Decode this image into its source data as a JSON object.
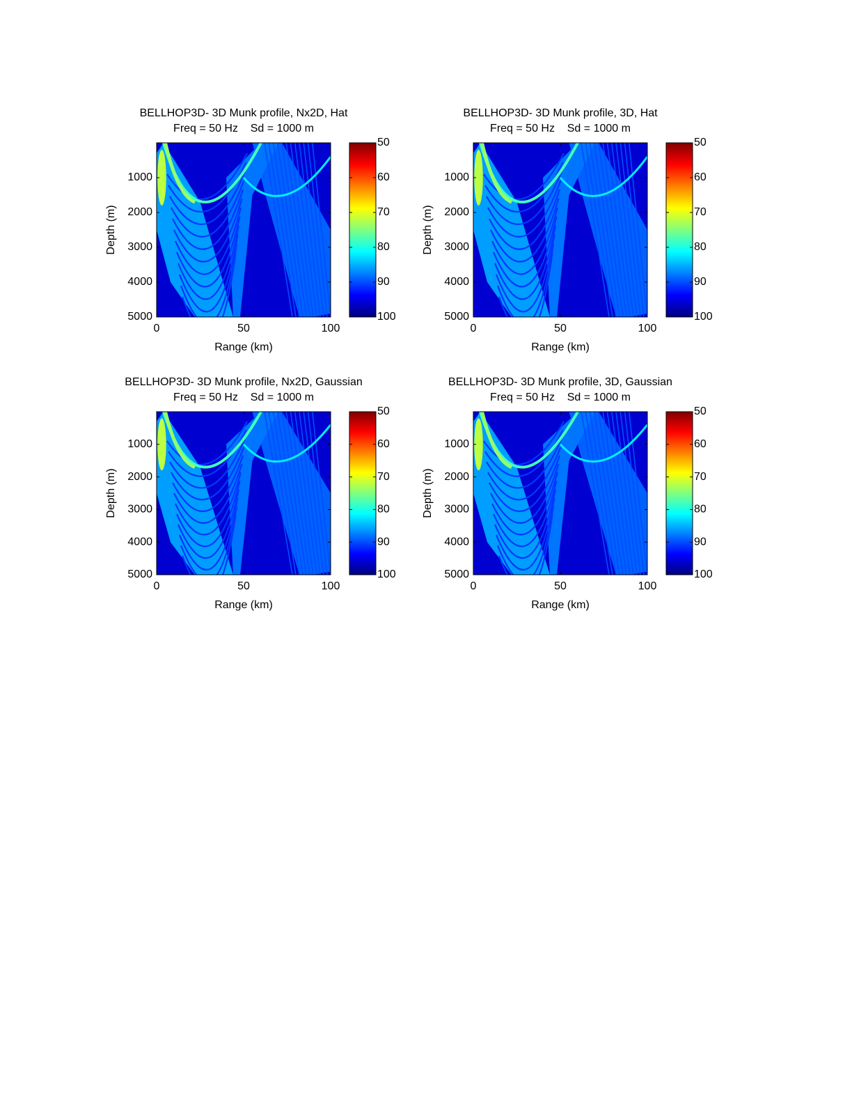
{
  "chart_data": [
    {
      "type": "heatmap",
      "title": "BELLHOP3D- 3D Munk profile, Nx2D, Hat",
      "subtitle": "Freq = 50 Hz    Sd = 1000 m",
      "xlabel": "Range (km)",
      "ylabel": "Depth (m)",
      "xlim": [
        0,
        100
      ],
      "ylim": [
        0,
        5000
      ],
      "yreverse": true,
      "xticks": [
        0,
        50,
        100
      ],
      "yticks": [
        1000,
        2000,
        3000,
        4000,
        5000
      ],
      "clim": [
        50,
        100
      ],
      "cticks": [
        50,
        60,
        70,
        80,
        90,
        100
      ],
      "creverse": true,
      "colormap": "jet"
    },
    {
      "type": "heatmap",
      "title": "BELLHOP3D- 3D Munk profile, 3D, Hat",
      "subtitle": "Freq = 50 Hz    Sd = 1000 m",
      "xlabel": "Range (km)",
      "ylabel": "Depth (m)",
      "xlim": [
        0,
        100
      ],
      "ylim": [
        0,
        5000
      ],
      "yreverse": true,
      "xticks": [
        0,
        50,
        100
      ],
      "yticks": [
        1000,
        2000,
        3000,
        4000,
        5000
      ],
      "clim": [
        50,
        100
      ],
      "cticks": [
        50,
        60,
        70,
        80,
        90,
        100
      ],
      "creverse": true,
      "colormap": "jet"
    },
    {
      "type": "heatmap",
      "title": "BELLHOP3D- 3D Munk profile, Nx2D, Gaussian",
      "subtitle": "Freq = 50 Hz    Sd = 1000 m",
      "xlabel": "Range (km)",
      "ylabel": "Depth (m)",
      "xlim": [
        0,
        100
      ],
      "ylim": [
        0,
        5000
      ],
      "yreverse": true,
      "xticks": [
        0,
        50,
        100
      ],
      "yticks": [
        1000,
        2000,
        3000,
        4000,
        5000
      ],
      "clim": [
        50,
        100
      ],
      "cticks": [
        50,
        60,
        70,
        80,
        90,
        100
      ],
      "creverse": true,
      "colormap": "jet"
    },
    {
      "type": "heatmap",
      "title": "BELLHOP3D- 3D Munk profile, 3D, Gaussian",
      "subtitle": "Freq = 50 Hz    Sd = 1000 m",
      "xlabel": "Range (km)",
      "ylabel": "Depth (m)",
      "xlim": [
        0,
        100
      ],
      "ylim": [
        0,
        5000
      ],
      "yreverse": true,
      "xticks": [
        0,
        50,
        100
      ],
      "yticks": [
        1000,
        2000,
        3000,
        4000,
        5000
      ],
      "clim": [
        50,
        100
      ],
      "cticks": [
        50,
        60,
        70,
        80,
        90,
        100
      ],
      "creverse": true,
      "colormap": "jet"
    }
  ]
}
